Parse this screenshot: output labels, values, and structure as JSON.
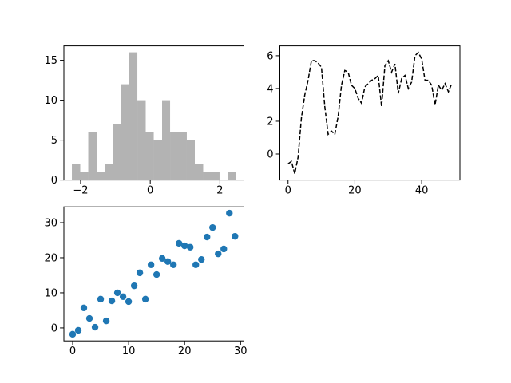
{
  "chart_data": [
    {
      "type": "histogram",
      "bins": [
        -2.25,
        -2.01,
        -1.78,
        -1.54,
        -1.31,
        -1.07,
        -0.84,
        -0.6,
        -0.37,
        -0.13,
        0.1,
        0.34,
        0.57,
        0.81,
        1.05,
        1.28,
        1.52,
        1.75,
        1.99,
        2.22,
        2.46
      ],
      "values": [
        2,
        1,
        6,
        1,
        2,
        7,
        12,
        16,
        10,
        6,
        5,
        10,
        6,
        6,
        5,
        2,
        1,
        1,
        0,
        1
      ],
      "color": "#b3b3b3",
      "xlim": [
        -2.48,
        2.69
      ],
      "xticks": [
        {
          "value": -2,
          "label": "−2"
        },
        0,
        2
      ],
      "ylim": [
        0,
        16.8
      ],
      "yticks": [
        0,
        5,
        10,
        15
      ]
    },
    {
      "type": "line",
      "x": [
        0,
        1,
        2,
        3,
        4,
        5,
        6,
        7,
        8,
        9,
        10,
        11,
        12,
        13,
        14,
        15,
        16,
        17,
        18,
        19,
        20,
        21,
        22,
        23,
        24,
        25,
        26,
        27,
        28,
        29,
        30,
        31,
        32,
        33,
        34,
        35,
        36,
        37,
        38,
        39,
        40,
        41,
        42,
        43,
        44,
        45,
        46,
        47,
        48,
        49
      ],
      "values": [
        -0.6,
        -0.45,
        -1.2,
        -0.2,
        2.2,
        3.6,
        4.5,
        5.7,
        5.7,
        5.55,
        5.3,
        2.9,
        1.2,
        1.4,
        1.2,
        2.3,
        4.2,
        5.1,
        5.0,
        4.2,
        4.0,
        3.4,
        3.1,
        4.1,
        4.3,
        4.5,
        4.6,
        4.8,
        2.9,
        5.4,
        5.7,
        5.0,
        5.5,
        3.7,
        4.6,
        4.8,
        4.0,
        4.4,
        6.0,
        6.2,
        5.8,
        4.5,
        4.5,
        4.2,
        3.0,
        4.2,
        3.9,
        4.3,
        3.8,
        4.3
      ],
      "color": "#000000",
      "line_style": "dashed",
      "xlim": [
        -2.45,
        51.45
      ],
      "xticks": [
        0,
        20,
        40
      ],
      "ylim": [
        -1.59,
        6.6
      ],
      "yticks": [
        0,
        2,
        4,
        6
      ]
    },
    {
      "type": "scatter",
      "x": [
        0,
        1,
        2,
        3,
        4,
        5,
        6,
        7,
        8,
        9,
        10,
        11,
        12,
        13,
        14,
        15,
        16,
        17,
        18,
        19,
        20,
        21,
        22,
        23,
        24,
        25,
        26,
        27,
        28,
        29
      ],
      "values": [
        -1.8,
        -0.7,
        5.7,
        2.7,
        0.2,
        8.2,
        2.0,
        7.7,
        10,
        8.9,
        7.5,
        12,
        15.7,
        8.2,
        18,
        15.2,
        19.8,
        18.9,
        18,
        24.1,
        23.4,
        23,
        18,
        19.5,
        25.9,
        28.6,
        21.1,
        22.5,
        32.7,
        26.1
      ],
      "color": "#1f77b4",
      "xlim": [
        -1.57,
        30.6
      ],
      "xticks": [
        0,
        10,
        20,
        30
      ],
      "ylim": [
        -3.7,
        34.5
      ],
      "yticks": [
        0,
        10,
        20,
        30
      ]
    }
  ]
}
